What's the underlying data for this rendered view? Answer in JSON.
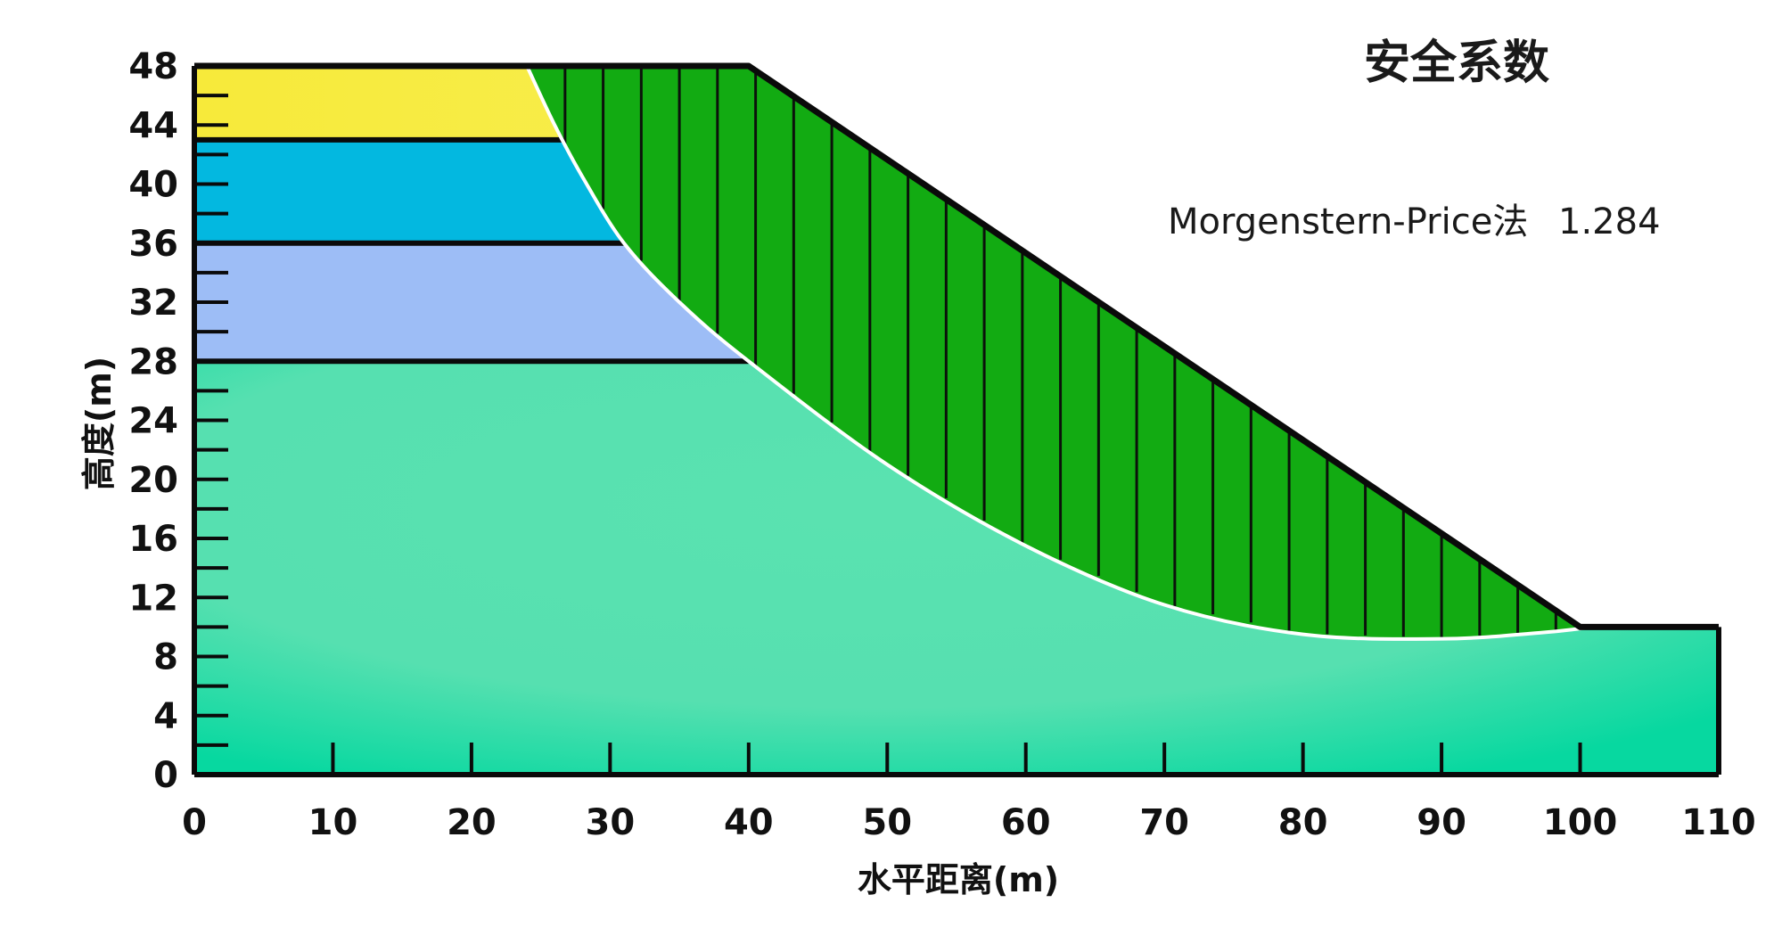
{
  "title": "安全系数",
  "method_label": "Morgenstern-Price法",
  "factor_of_safety": "1.284",
  "x_axis": {
    "label": "水平距离(m)",
    "ticks": [
      "0",
      "10",
      "20",
      "30",
      "40",
      "50",
      "60",
      "70",
      "80",
      "90",
      "100",
      "110"
    ]
  },
  "y_axis": {
    "label": "高度(m)",
    "ticks": [
      "0",
      "4",
      "8",
      "12",
      "16",
      "20",
      "24",
      "28",
      "32",
      "36",
      "40",
      "44",
      "48"
    ]
  },
  "chart_data": {
    "type": "slope-stability-section",
    "xlim": [
      0,
      110
    ],
    "ylim": [
      0,
      48
    ],
    "ground_surface": [
      [
        0,
        48
      ],
      [
        40,
        48
      ],
      [
        100,
        10
      ],
      [
        110,
        10
      ]
    ],
    "layer_boundaries": [
      43,
      36,
      28
    ],
    "layers": [
      {
        "top": 48,
        "bottom": 43,
        "color": "#f5ec52"
      },
      {
        "top": 43,
        "bottom": 36,
        "color": "#03b8e0"
      },
      {
        "top": 36,
        "bottom": 28,
        "color": "#9dbdf6"
      },
      {
        "top": 28,
        "bottom": 0,
        "color": "#5ae2b0"
      }
    ],
    "slip_surface": [
      [
        24,
        48
      ],
      [
        26,
        44
      ],
      [
        28,
        40.5
      ],
      [
        31,
        36
      ],
      [
        35,
        32
      ],
      [
        40,
        28
      ],
      [
        50,
        21
      ],
      [
        60,
        15.5
      ],
      [
        70,
        11.5
      ],
      [
        80,
        9.5
      ],
      [
        90,
        9.2
      ],
      [
        97,
        9.6
      ],
      [
        101,
        10
      ]
    ],
    "slices_x_start": 24,
    "slices_x_end": 101,
    "slice_count": 28,
    "slice_color": "#12ab12"
  }
}
